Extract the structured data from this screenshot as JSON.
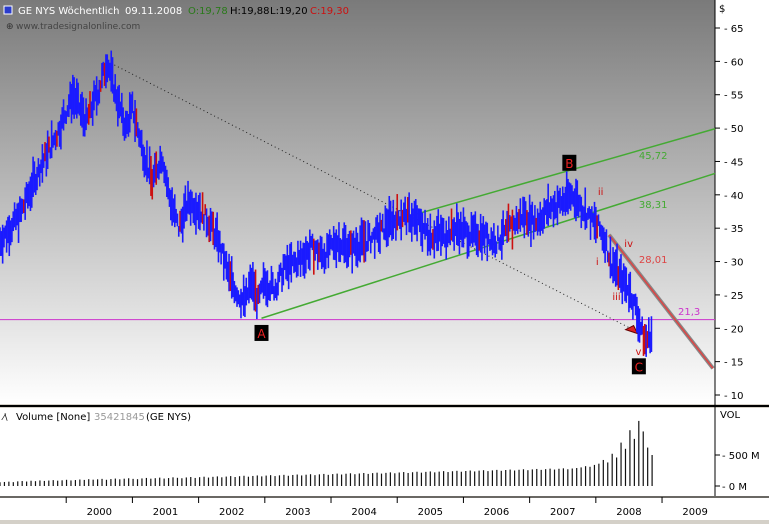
{
  "header": {
    "symbol_label": "GE NYS Wöchentlich",
    "date": "09.11.2008",
    "open": "O:19,78",
    "high": "H:19,88",
    "low": "L:19,20",
    "close": "C:19,30",
    "watermark": "www.tradesignalonline.com",
    "currency": "$"
  },
  "volume_header": {
    "title": "Volume [None]",
    "value": "35421845",
    "symbol": "(GE NYS)",
    "axis_title": "VOL"
  },
  "colors": {
    "price_bars": "#1a1aff",
    "bear_bars": "#cc1010",
    "channel": "#44aa33",
    "horizontal_line": "#cc33cc",
    "fall_line": "#dd4444",
    "wave_labels": "#cc1010",
    "chart_bg_top": "#7a7a7a",
    "chart_bg_bottom": "#ffffff"
  },
  "chart_data": [
    {
      "type": "line",
      "series": [
        {
          "points": [
            [
              1999.0,
              33
            ],
            [
              1999.3,
              37
            ],
            [
              1999.6,
              44
            ],
            [
              1999.9,
              50
            ],
            [
              2000.1,
              55
            ],
            [
              2000.3,
              51
            ],
            [
              2000.5,
              56
            ],
            [
              2000.62,
              60
            ],
            [
              2000.75,
              55
            ],
            [
              2000.9,
              50
            ],
            [
              2001.0,
              53
            ],
            [
              2001.15,
              47
            ],
            [
              2001.3,
              42
            ],
            [
              2001.45,
              46
            ],
            [
              2001.55,
              40
            ],
            [
              2001.7,
              35
            ],
            [
              2001.85,
              39
            ],
            [
              2002.0,
              38
            ],
            [
              2002.15,
              36
            ],
            [
              2002.3,
              33
            ],
            [
              2002.45,
              28
            ],
            [
              2002.6,
              25
            ],
            [
              2002.7,
              24
            ],
            [
              2002.8,
              27
            ],
            [
              2002.9,
              24
            ],
            [
              2003.0,
              27
            ],
            [
              2003.15,
              26
            ],
            [
              2003.3,
              29
            ],
            [
              2003.5,
              30
            ],
            [
              2003.7,
              32
            ],
            [
              2003.9,
              31
            ],
            [
              2004.1,
              33
            ],
            [
              2004.3,
              32
            ],
            [
              2004.5,
              33
            ],
            [
              2004.7,
              34
            ],
            [
              2004.9,
              36
            ],
            [
              2005.1,
              37
            ],
            [
              2005.3,
              36
            ],
            [
              2005.5,
              34
            ],
            [
              2005.7,
              34
            ],
            [
              2005.9,
              35
            ],
            [
              2006.1,
              34
            ],
            [
              2006.3,
              34
            ],
            [
              2006.5,
              33
            ],
            [
              2006.7,
              35
            ],
            [
              2006.9,
              37
            ],
            [
              2007.1,
              36
            ],
            [
              2007.3,
              38
            ],
            [
              2007.5,
              39
            ],
            [
              2007.65,
              40
            ],
            [
              2007.8,
              38
            ],
            [
              2007.95,
              36
            ],
            [
              2008.05,
              35
            ],
            [
              2008.15,
              33
            ],
            [
              2008.22,
              30
            ],
            [
              2008.3,
              29
            ],
            [
              2008.4,
              27
            ],
            [
              2008.5,
              26
            ],
            [
              2008.6,
              23
            ],
            [
              2008.68,
              20
            ],
            [
              2008.75,
              18
            ],
            [
              2008.85,
              19.3
            ]
          ]
        }
      ],
      "ylim": [
        10,
        65
      ],
      "yticks": [
        10,
        15,
        20,
        25,
        30,
        35,
        40,
        45,
        50,
        55,
        60,
        65
      ],
      "xticks": [
        "2000",
        "2001",
        "2002",
        "2003",
        "2004",
        "2005",
        "2006",
        "2007",
        "2008",
        "2009"
      ],
      "annotations": {
        "wave_a": "A",
        "wave_b": "B",
        "wave_c": "C",
        "wave_i": "i",
        "wave_ii": "ii",
        "wave_iii": "iii",
        "wave_iv": "iv",
        "wave_v": "v",
        "wave_top": "i",
        "level_upper": "45,72",
        "level_lower": "38,31",
        "level_fall": "28,01",
        "level_horizontal": "21,3"
      },
      "grid": false,
      "legend": "none"
    },
    {
      "type": "bar",
      "title": "Volume [None]",
      "yticks": [
        "0 M",
        "500 M"
      ],
      "values": [
        60,
        65,
        70,
        62,
        75,
        80,
        72,
        85,
        78,
        90,
        82,
        88,
        95,
        86,
        92,
        100,
        90,
        96,
        105,
        98,
        110,
        102,
        108,
        115,
        100,
        112,
        120,
        108,
        118,
        125,
        115,
        110,
        122,
        130,
        118,
        126,
        135,
        120,
        128,
        140,
        132,
        125,
        138,
        145,
        130,
        142,
        150,
        136,
        148,
        155,
        140,
        152,
        160,
        145,
        158,
        165,
        150,
        162,
        170,
        155,
        168,
        175,
        160,
        172,
        180,
        165,
        178,
        185,
        170,
        182,
        190,
        175,
        188,
        195,
        180,
        192,
        200,
        185,
        198,
        205,
        190,
        202,
        210,
        195,
        208,
        215,
        200,
        212,
        220,
        205,
        218,
        225,
        210,
        222,
        230,
        215,
        228,
        235,
        220,
        232,
        240,
        225,
        238,
        245,
        230,
        242,
        250,
        235,
        248,
        255,
        240,
        252,
        260,
        245,
        258,
        265,
        250,
        262,
        270,
        255,
        268,
        275,
        260,
        272,
        280,
        265,
        278,
        285,
        270,
        282,
        290,
        300,
        320,
        310,
        340,
        360,
        420,
        380,
        520,
        460,
        700,
        600,
        900,
        760,
        1050,
        880,
        620,
        500
      ]
    }
  ]
}
